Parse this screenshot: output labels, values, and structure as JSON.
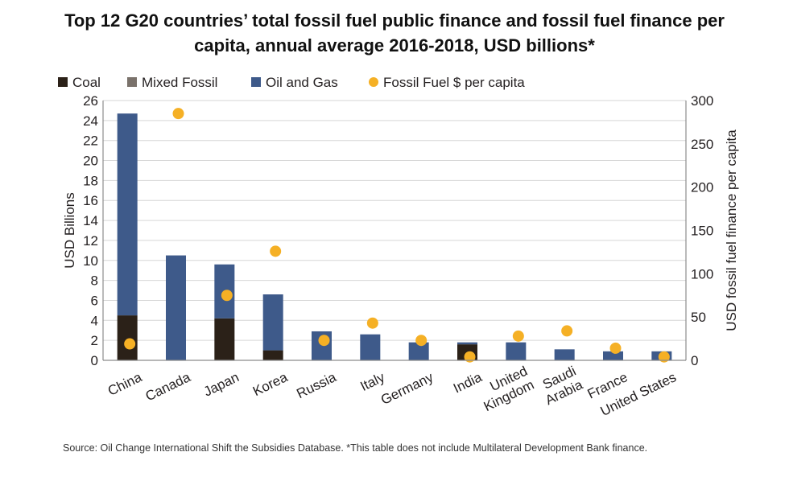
{
  "chart_data": {
    "type": "bar",
    "title": "Top 12 G20 countries’ total fossil fuel public finance and fossil fuel finance per capita, annual average 2016-2018, USD billions*",
    "title_lines": [
      "Top 12 G20 countries’ total fossil fuel public finance and fossil fuel finance per",
      "capita, annual average 2016-2018, USD billions*"
    ],
    "categories": [
      "China",
      "Canada",
      "Japan",
      "Korea",
      "Russia",
      "Italy",
      "Germany",
      "India",
      "United Kingdom",
      "Saudi Arabia",
      "France",
      "United States"
    ],
    "category_label_lines": [
      [
        "China"
      ],
      [
        "Canada"
      ],
      [
        "Japan"
      ],
      [
        "Korea"
      ],
      [
        "Russia"
      ],
      [
        "Italy"
      ],
      [
        "Germany"
      ],
      [
        "India"
      ],
      [
        "United",
        "Kingdom"
      ],
      [
        "Saudi",
        "Arabia"
      ],
      [
        "France"
      ],
      [
        "United States"
      ]
    ],
    "stacked": true,
    "series": [
      {
        "name": "Coal",
        "axis": "left",
        "color": "#2b2118",
        "values": [
          4.5,
          0,
          4.2,
          1.0,
          0,
          0,
          0,
          1.6,
          0,
          0,
          0,
          0
        ]
      },
      {
        "name": "Mixed Fossil",
        "axis": "left",
        "color": "#7a726b",
        "values": [
          0,
          0,
          0,
          0,
          0,
          0,
          0,
          0,
          0,
          0,
          0,
          0
        ]
      },
      {
        "name": "Oil and Gas",
        "axis": "left",
        "color": "#3e5a8a",
        "values": [
          20.2,
          10.5,
          5.4,
          5.6,
          2.9,
          2.6,
          1.8,
          0.2,
          1.8,
          1.1,
          0.9,
          0.9
        ]
      },
      {
        "name": "Fossil Fuel $ per capita",
        "axis": "right",
        "type": "scatter",
        "color": "#f5b025",
        "values": [
          19,
          285,
          75,
          126,
          23,
          43,
          23,
          4,
          28,
          34,
          14,
          4
        ]
      }
    ],
    "legend": [
      "Coal",
      "Mixed Fossil",
      "Oil and Gas",
      "Fossil Fuel $ per capita"
    ],
    "legend_position": "top-left",
    "ylabel": "USD Billions",
    "ylim": [
      0,
      26
    ],
    "yticks": [
      0,
      2,
      4,
      6,
      8,
      10,
      12,
      14,
      16,
      18,
      20,
      22,
      24,
      26
    ],
    "y2label": "USD fossil fuel finance per capita",
    "y2lim": [
      0,
      300
    ],
    "y2ticks": [
      0,
      50,
      100,
      150,
      200,
      250,
      300
    ],
    "grid": true
  },
  "source_note": "Source: Oil Change International Shift the Subsidies Database. *This table does not include Multilateral Development Bank finance."
}
